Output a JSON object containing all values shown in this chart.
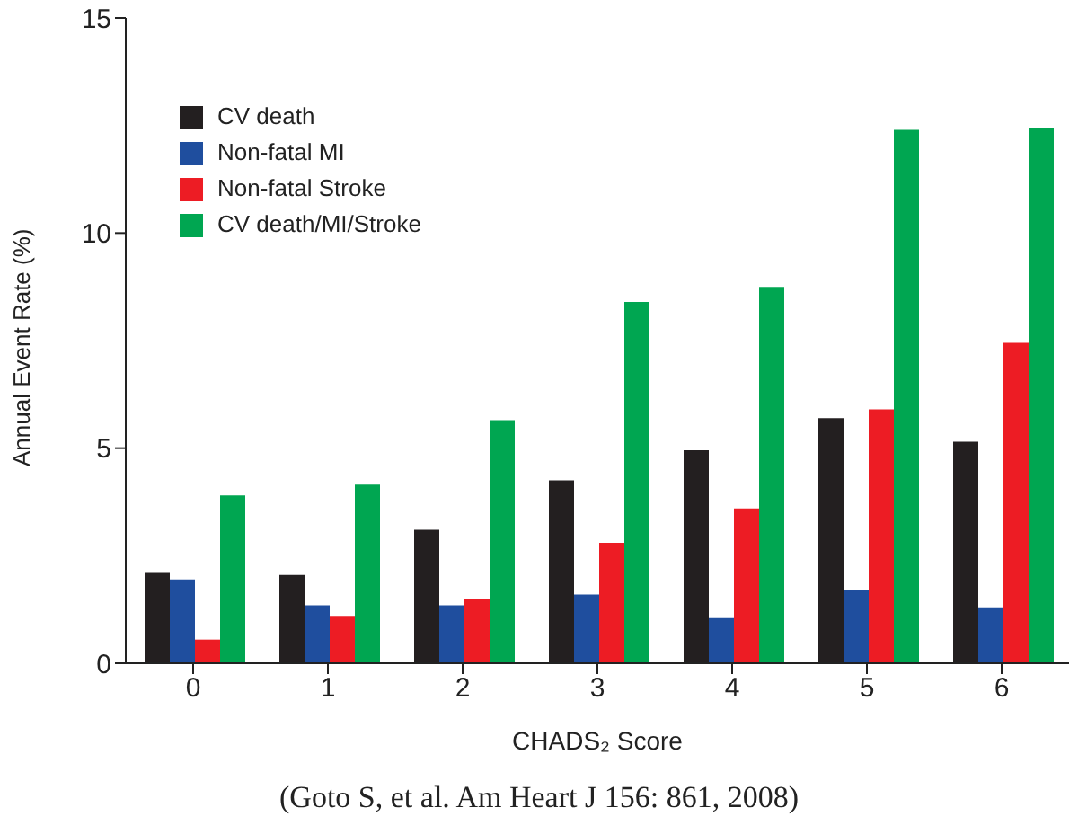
{
  "chart_data": {
    "type": "bar",
    "xlabel": "CHADS₂ Score",
    "ylabel": "Annual Event Rate (%)",
    "categories": [
      "0",
      "1",
      "2",
      "3",
      "4",
      "5",
      "6"
    ],
    "series": [
      {
        "name": "CV death",
        "color": "#231f20",
        "values": [
          2.1,
          2.05,
          3.1,
          4.25,
          4.95,
          5.7,
          5.15
        ]
      },
      {
        "name": "Non-fatal MI",
        "color": "#1f4e9e",
        "values": [
          1.95,
          1.35,
          1.35,
          1.6,
          1.05,
          1.7,
          1.3
        ]
      },
      {
        "name": "Non-fatal Stroke",
        "color": "#ed1c24",
        "values": [
          0.55,
          1.1,
          1.5,
          2.8,
          3.6,
          5.9,
          7.45
        ]
      },
      {
        "name": "CV death/MI/Stroke",
        "color": "#00a651",
        "values": [
          3.9,
          4.15,
          5.65,
          8.4,
          8.75,
          12.4,
          12.45
        ]
      }
    ],
    "ylim": [
      0,
      15
    ],
    "yticks": [
      0,
      5,
      10,
      15
    ],
    "grid": false,
    "legend": "top left",
    "annotations": [
      "(Goto S, et al. Am Heart J 156: 861, 2008)"
    ]
  }
}
